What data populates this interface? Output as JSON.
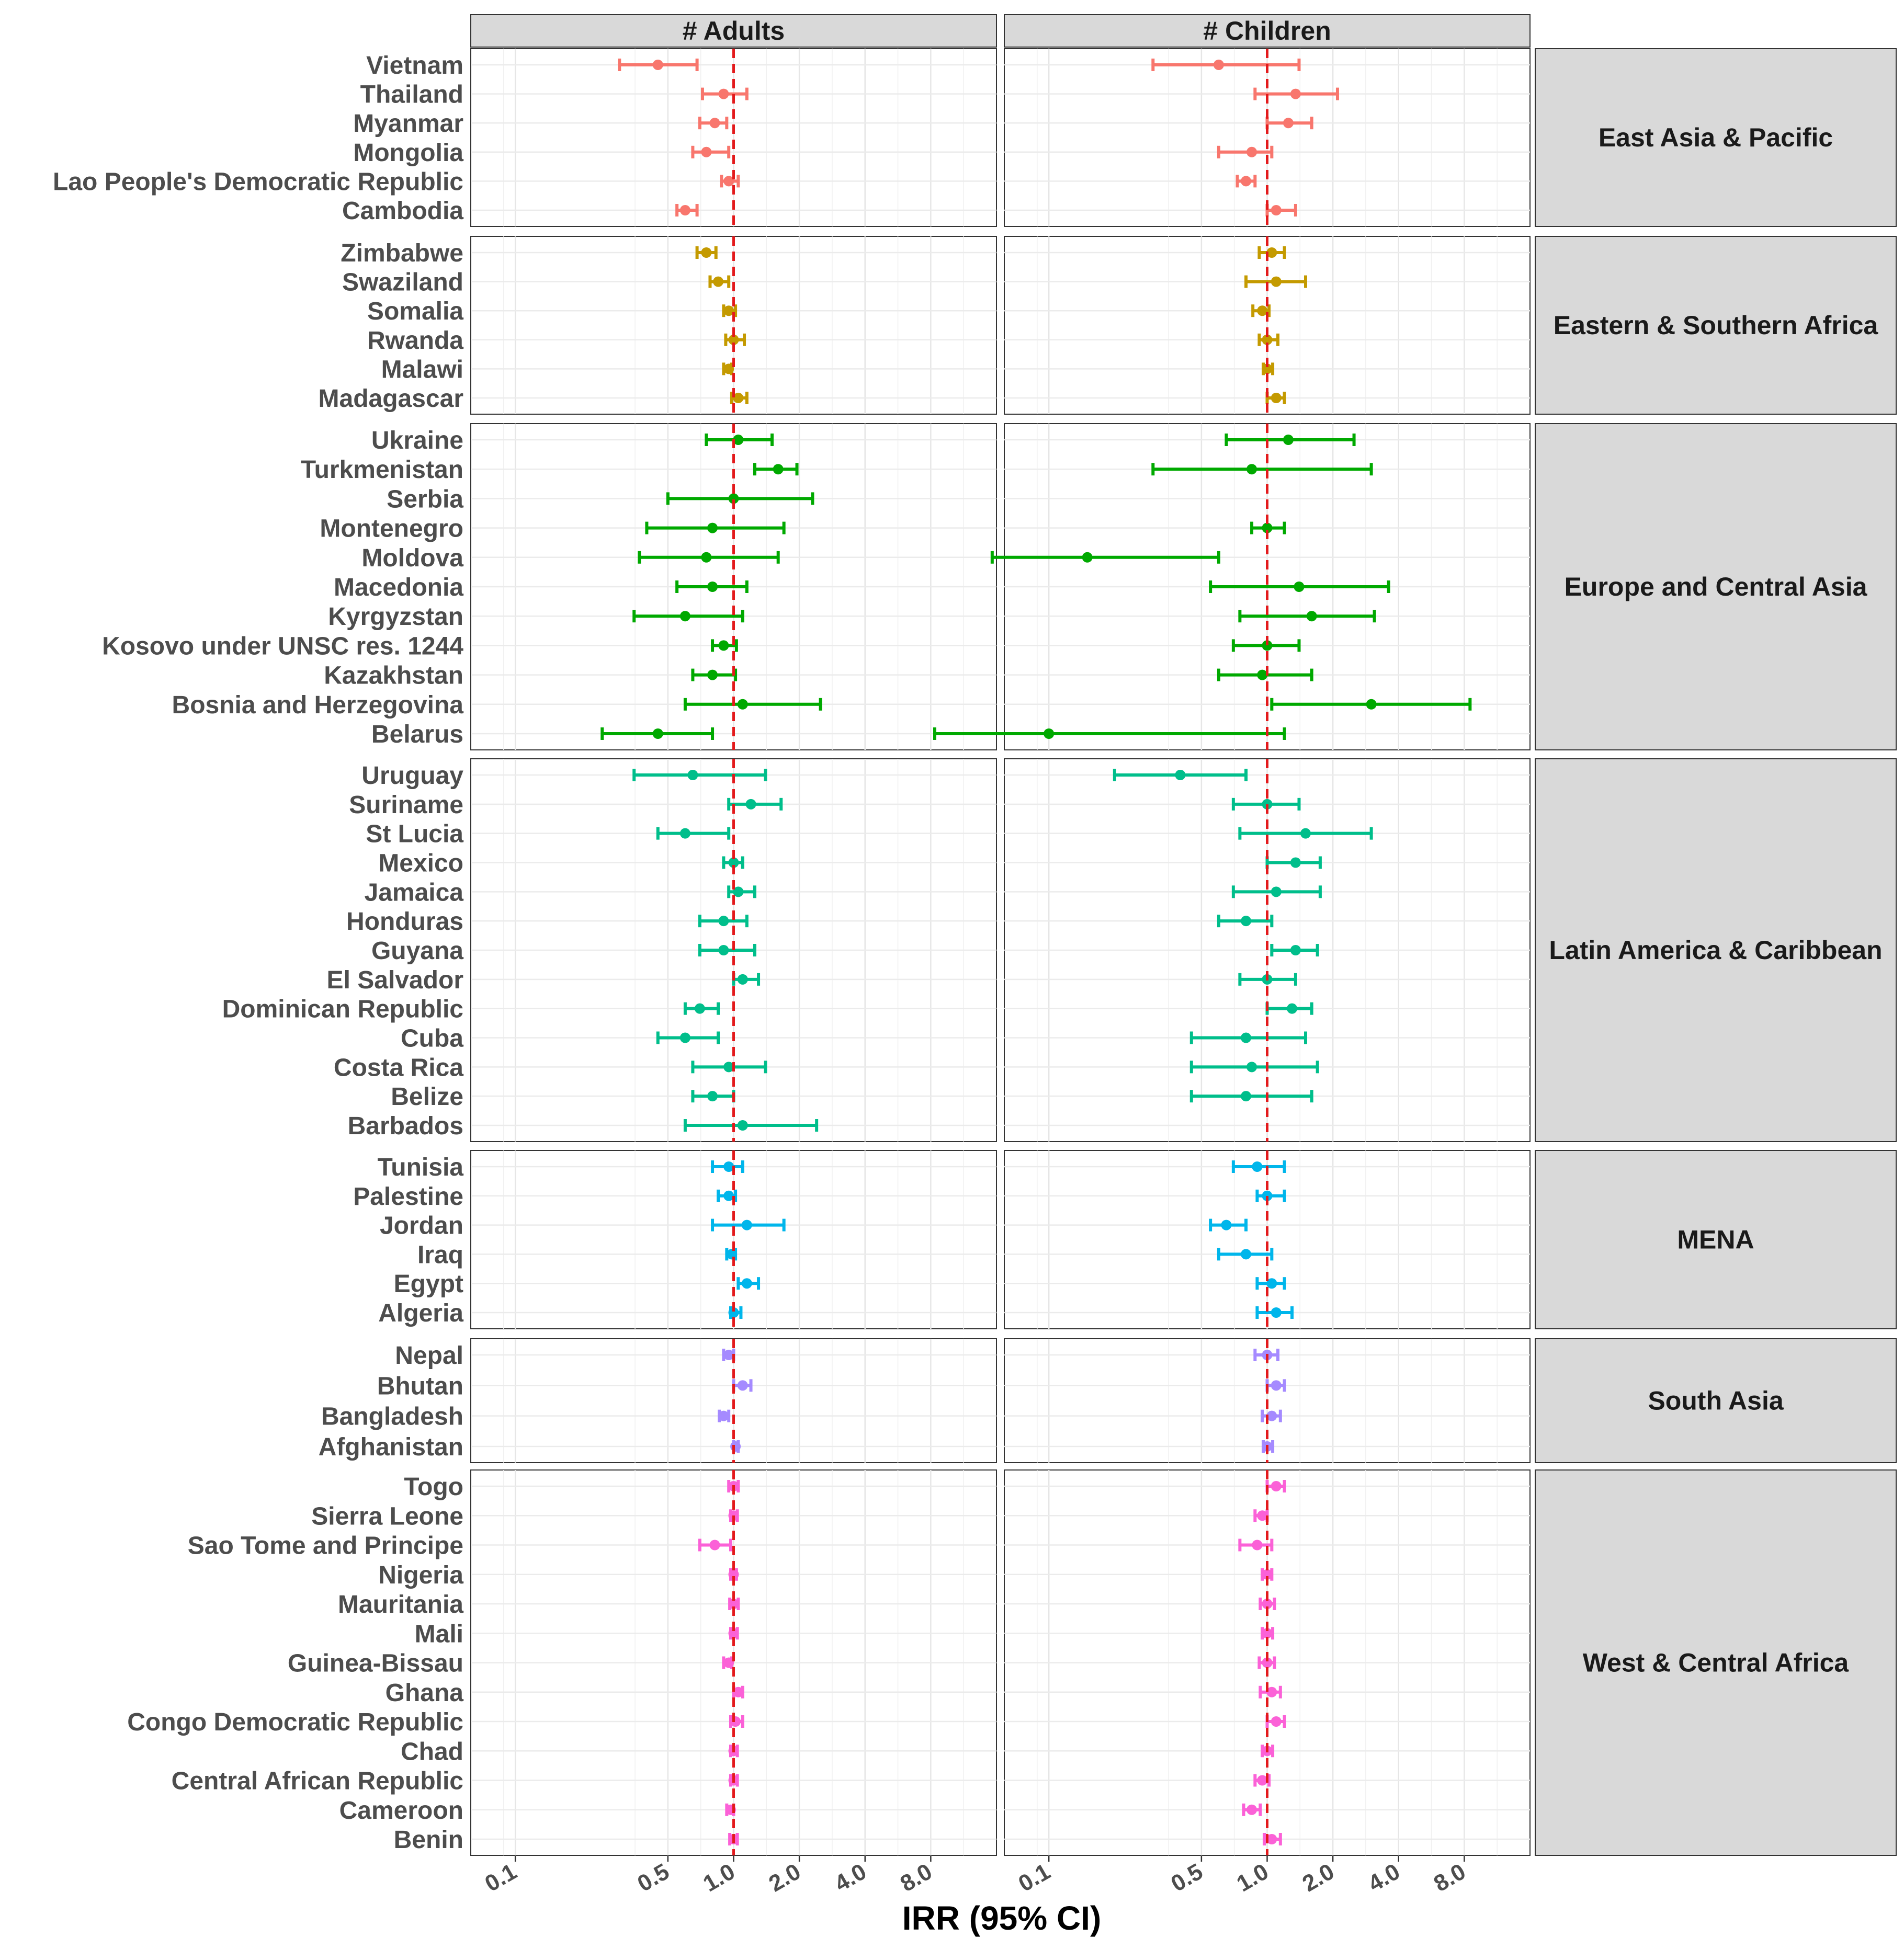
{
  "chart_data": {
    "type": "forest",
    "xlabel": "IRR (95% CI)",
    "x_scale": "log",
    "xlim": [
      0.0625,
      16
    ],
    "x_ticks": [
      0.1,
      0.5,
      1.0,
      2.0,
      4.0,
      8.0
    ],
    "x_tick_labels": [
      "0.1",
      "0.5",
      "1.0",
      "2.0",
      "4.0",
      "8.0"
    ],
    "reference_line": 1.0,
    "reference_color": "#e31a1c",
    "grid": true,
    "columns": [
      {
        "key": "adults",
        "label": "# Adults"
      },
      {
        "key": "children",
        "label": "# Children"
      }
    ],
    "regions": [
      {
        "name": "East Asia & Pacific",
        "color": "#F8766D",
        "countries": [
          {
            "name": "Vietnam",
            "adults": [
              0.45,
              0.3,
              0.68
            ],
            "children": [
              0.6,
              0.3,
              1.4
            ]
          },
          {
            "name": "Thailand",
            "adults": [
              0.9,
              0.72,
              1.15
            ],
            "children": [
              1.35,
              0.88,
              2.1
            ]
          },
          {
            "name": "Myanmar",
            "adults": [
              0.82,
              0.7,
              0.93
            ],
            "children": [
              1.25,
              1.0,
              1.6
            ]
          },
          {
            "name": "Mongolia",
            "adults": [
              0.75,
              0.65,
              0.95
            ],
            "children": [
              0.85,
              0.6,
              1.05
            ]
          },
          {
            "name": "Lao People's Democratic Republic",
            "adults": [
              0.95,
              0.88,
              1.05
            ],
            "children": [
              0.8,
              0.73,
              0.88
            ]
          },
          {
            "name": "Cambodia",
            "adults": [
              0.6,
              0.55,
              0.68
            ],
            "children": [
              1.1,
              1.0,
              1.35
            ]
          }
        ]
      },
      {
        "name": "Eastern & Southern Africa",
        "color": "#C49A00",
        "countries": [
          {
            "name": "Zimbabwe",
            "adults": [
              0.75,
              0.68,
              0.83
            ],
            "children": [
              1.05,
              0.92,
              1.2
            ]
          },
          {
            "name": "Swaziland",
            "adults": [
              0.85,
              0.78,
              0.95
            ],
            "children": [
              1.1,
              0.8,
              1.5
            ]
          },
          {
            "name": "Somalia",
            "adults": [
              0.95,
              0.9,
              1.02
            ],
            "children": [
              0.95,
              0.86,
              1.02
            ]
          },
          {
            "name": "Rwanda",
            "adults": [
              1.0,
              0.92,
              1.12
            ],
            "children": [
              1.0,
              0.92,
              1.12
            ]
          },
          {
            "name": "Malawi",
            "adults": [
              0.95,
              0.9,
              0.98
            ],
            "children": [
              1.0,
              0.96,
              1.06
            ]
          },
          {
            "name": "Madagascar",
            "adults": [
              1.05,
              0.98,
              1.15
            ],
            "children": [
              1.1,
              1.0,
              1.2
            ]
          }
        ]
      },
      {
        "name": "Europe and Central Asia",
        "color": "#00A900",
        "countries": [
          {
            "name": "Ukraine",
            "adults": [
              1.05,
              0.75,
              1.5
            ],
            "children": [
              1.25,
              0.65,
              2.5
            ]
          },
          {
            "name": "Turkmenistan",
            "adults": [
              1.6,
              1.25,
              1.95
            ],
            "children": [
              0.85,
              0.3,
              3.0
            ]
          },
          {
            "name": "Serbia",
            "adults": [
              1.0,
              0.5,
              2.3
            ],
            "children": null
          },
          {
            "name": "Montenegro",
            "adults": [
              0.8,
              0.4,
              1.7
            ],
            "children": [
              1.0,
              0.85,
              1.2
            ]
          },
          {
            "name": "Moldova",
            "adults": [
              0.75,
              0.37,
              1.6
            ],
            "children": [
              0.15,
              0.055,
              0.6
            ]
          },
          {
            "name": "Macedonia",
            "adults": [
              0.8,
              0.55,
              1.15
            ],
            "children": [
              1.4,
              0.55,
              3.6
            ]
          },
          {
            "name": "Kyrgyzstan",
            "adults": [
              0.6,
              0.35,
              1.1
            ],
            "children": [
              1.6,
              0.75,
              3.1
            ]
          },
          {
            "name": "Kosovo under UNSC res. 1244",
            "adults": [
              0.9,
              0.8,
              1.03
            ],
            "children": [
              1.0,
              0.7,
              1.4
            ]
          },
          {
            "name": "Kazakhstan",
            "adults": [
              0.8,
              0.65,
              1.02
            ],
            "children": [
              0.95,
              0.6,
              1.6
            ]
          },
          {
            "name": "Bosnia and Herzegovina",
            "adults": [
              1.1,
              0.6,
              2.5
            ],
            "children": [
              3.0,
              1.05,
              8.5
            ]
          },
          {
            "name": "Belarus",
            "adults": [
              0.45,
              0.25,
              0.8
            ],
            "children": [
              0.1,
              0.03,
              1.2
            ]
          }
        ]
      },
      {
        "name": "Latin America & Caribbean",
        "color": "#00BE8B",
        "countries": [
          {
            "name": "Uruguay",
            "adults": [
              0.65,
              0.35,
              1.4
            ],
            "children": [
              0.4,
              0.2,
              0.8
            ]
          },
          {
            "name": "Suriname",
            "adults": [
              1.2,
              0.95,
              1.65
            ],
            "children": [
              1.0,
              0.7,
              1.4
            ]
          },
          {
            "name": "St Lucia",
            "adults": [
              0.6,
              0.45,
              0.95
            ],
            "children": [
              1.5,
              0.75,
              3.0
            ]
          },
          {
            "name": "Mexico",
            "adults": [
              1.0,
              0.9,
              1.1
            ],
            "children": [
              1.35,
              1.0,
              1.75
            ]
          },
          {
            "name": "Jamaica",
            "adults": [
              1.05,
              0.95,
              1.25
            ],
            "children": [
              1.1,
              0.7,
              1.75
            ]
          },
          {
            "name": "Honduras",
            "adults": [
              0.9,
              0.7,
              1.15
            ],
            "children": [
              0.8,
              0.6,
              1.05
            ]
          },
          {
            "name": "Guyana",
            "adults": [
              0.9,
              0.7,
              1.25
            ],
            "children": [
              1.35,
              1.05,
              1.7
            ]
          },
          {
            "name": "El Salvador",
            "adults": [
              1.1,
              1.0,
              1.3
            ],
            "children": [
              1.0,
              0.75,
              1.35
            ]
          },
          {
            "name": "Dominican Republic",
            "adults": [
              0.7,
              0.6,
              0.85
            ],
            "children": [
              1.3,
              1.0,
              1.6
            ]
          },
          {
            "name": "Cuba",
            "adults": [
              0.6,
              0.45,
              0.85
            ],
            "children": [
              0.8,
              0.45,
              1.5
            ]
          },
          {
            "name": "Costa Rica",
            "adults": [
              0.95,
              0.65,
              1.4
            ],
            "children": [
              0.85,
              0.45,
              1.7
            ]
          },
          {
            "name": "Belize",
            "adults": [
              0.8,
              0.65,
              1.0
            ],
            "children": [
              0.8,
              0.45,
              1.6
            ]
          },
          {
            "name": "Barbados",
            "adults": [
              1.1,
              0.6,
              2.4
            ],
            "children": null
          }
        ]
      },
      {
        "name": "MENA",
        "color": "#00B6EB",
        "countries": [
          {
            "name": "Tunisia",
            "adults": [
              0.95,
              0.8,
              1.1
            ],
            "children": [
              0.9,
              0.7,
              1.2
            ]
          },
          {
            "name": "Palestine",
            "adults": [
              0.95,
              0.85,
              1.02
            ],
            "children": [
              1.0,
              0.9,
              1.2
            ]
          },
          {
            "name": "Jordan",
            "adults": [
              1.15,
              0.8,
              1.7
            ],
            "children": [
              0.65,
              0.55,
              0.8
            ]
          },
          {
            "name": "Iraq",
            "adults": [
              0.98,
              0.93,
              1.02
            ],
            "children": [
              0.8,
              0.6,
              1.05
            ]
          },
          {
            "name": "Egypt",
            "adults": [
              1.15,
              1.05,
              1.3
            ],
            "children": [
              1.05,
              0.9,
              1.2
            ]
          },
          {
            "name": "Algeria",
            "adults": [
              1.0,
              0.97,
              1.08
            ],
            "children": [
              1.1,
              0.9,
              1.3
            ]
          }
        ]
      },
      {
        "name": "South Asia",
        "color": "#A58AFF",
        "countries": [
          {
            "name": "Nepal",
            "adults": [
              0.95,
              0.9,
              1.0
            ],
            "children": [
              1.0,
              0.88,
              1.12
            ]
          },
          {
            "name": "Bhutan",
            "adults": [
              1.1,
              1.0,
              1.2
            ],
            "children": [
              1.1,
              1.0,
              1.2
            ]
          },
          {
            "name": "Bangladesh",
            "adults": [
              0.9,
              0.86,
              0.95
            ],
            "children": [
              1.05,
              0.95,
              1.15
            ]
          },
          {
            "name": "Afghanistan",
            "adults": [
              1.02,
              1.0,
              1.05
            ],
            "children": [
              1.0,
              0.96,
              1.06
            ]
          }
        ]
      },
      {
        "name": "West & Central Africa",
        "color": "#FB61D7",
        "countries": [
          {
            "name": "Togo",
            "adults": [
              1.0,
              0.95,
              1.05
            ],
            "children": [
              1.1,
              1.0,
              1.2
            ]
          },
          {
            "name": "Sierra Leone",
            "adults": [
              1.0,
              0.97,
              1.04
            ],
            "children": [
              0.95,
              0.88,
              1.0
            ]
          },
          {
            "name": "Sao Tome and Principe",
            "adults": [
              0.82,
              0.7,
              0.97
            ],
            "children": [
              0.9,
              0.75,
              1.05
            ]
          },
          {
            "name": "Nigeria",
            "adults": [
              1.0,
              0.97,
              1.03
            ],
            "children": [
              1.0,
              0.95,
              1.05
            ]
          },
          {
            "name": "Mauritania",
            "adults": [
              1.0,
              0.96,
              1.05
            ],
            "children": [
              1.0,
              0.93,
              1.08
            ]
          },
          {
            "name": "Mali",
            "adults": [
              1.0,
              0.97,
              1.04
            ],
            "children": [
              1.0,
              0.95,
              1.06
            ]
          },
          {
            "name": "Guinea-Bissau",
            "adults": [
              0.95,
              0.9,
              0.98
            ],
            "children": [
              1.0,
              0.92,
              1.08
            ]
          },
          {
            "name": "Ghana",
            "adults": [
              1.05,
              1.0,
              1.1
            ],
            "children": [
              1.05,
              0.93,
              1.15
            ]
          },
          {
            "name": "Congo Democratic Republic",
            "adults": [
              1.02,
              0.97,
              1.1
            ],
            "children": [
              1.1,
              1.0,
              1.2
            ]
          },
          {
            "name": "Chad",
            "adults": [
              1.0,
              0.97,
              1.04
            ],
            "children": [
              1.0,
              0.95,
              1.06
            ]
          },
          {
            "name": "Central African Republic",
            "adults": [
              1.0,
              0.97,
              1.04
            ],
            "children": [
              0.95,
              0.88,
              1.02
            ]
          },
          {
            "name": "Cameroon",
            "adults": [
              0.97,
              0.93,
              1.0
            ],
            "children": [
              0.85,
              0.78,
              0.93
            ]
          },
          {
            "name": "Benin",
            "adults": [
              1.0,
              0.96,
              1.04
            ],
            "children": [
              1.05,
              0.97,
              1.15
            ]
          }
        ]
      }
    ]
  }
}
